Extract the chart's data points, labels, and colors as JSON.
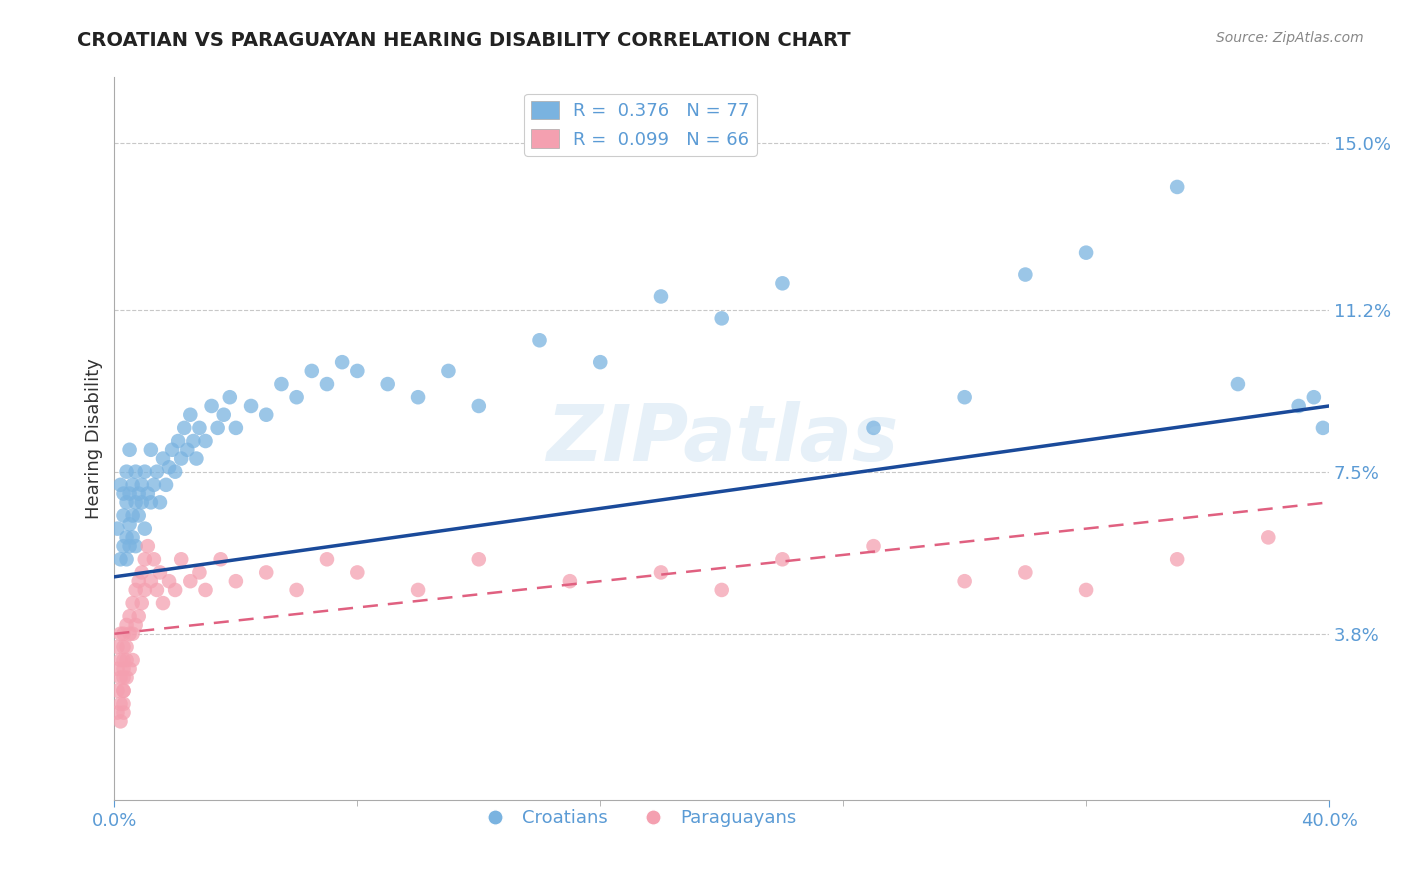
{
  "title": "CROATIAN VS PARAGUAYAN HEARING DISABILITY CORRELATION CHART",
  "source_text": "Source: ZipAtlas.com",
  "ylabel": "Hearing Disability",
  "xlim": [
    0.0,
    0.4
  ],
  "ylim": [
    0.0,
    0.165
  ],
  "ytick_positions": [
    0.038,
    0.075,
    0.112,
    0.15
  ],
  "ytick_labels": [
    "3.8%",
    "7.5%",
    "11.2%",
    "15.0%"
  ],
  "axis_color": "#5b9bd5",
  "grid_color": "#c8c8c8",
  "background_color": "#ffffff",
  "watermark_text": "ZIPatlas",
  "croatian_color": "#7ab3e0",
  "paraguayan_color": "#f4a0b0",
  "croatian_line_color": "#1a4a9a",
  "paraguayan_line_color": "#e06080",
  "croatian_N": 77,
  "paraguayan_N": 66,
  "croatian_R": 0.376,
  "paraguayan_R": 0.099,
  "croatian_x": [
    0.001,
    0.002,
    0.002,
    0.003,
    0.003,
    0.003,
    0.004,
    0.004,
    0.004,
    0.004,
    0.005,
    0.005,
    0.005,
    0.005,
    0.006,
    0.006,
    0.006,
    0.007,
    0.007,
    0.007,
    0.008,
    0.008,
    0.009,
    0.009,
    0.01,
    0.01,
    0.011,
    0.012,
    0.012,
    0.013,
    0.014,
    0.015,
    0.016,
    0.017,
    0.018,
    0.019,
    0.02,
    0.021,
    0.022,
    0.023,
    0.024,
    0.025,
    0.026,
    0.027,
    0.028,
    0.03,
    0.032,
    0.034,
    0.036,
    0.038,
    0.04,
    0.045,
    0.05,
    0.055,
    0.06,
    0.065,
    0.07,
    0.075,
    0.08,
    0.09,
    0.1,
    0.11,
    0.12,
    0.14,
    0.16,
    0.18,
    0.2,
    0.22,
    0.25,
    0.28,
    0.3,
    0.32,
    0.35,
    0.37,
    0.39,
    0.395,
    0.398
  ],
  "croatian_y": [
    0.062,
    0.055,
    0.072,
    0.058,
    0.065,
    0.07,
    0.06,
    0.068,
    0.075,
    0.055,
    0.063,
    0.07,
    0.058,
    0.08,
    0.065,
    0.072,
    0.06,
    0.068,
    0.075,
    0.058,
    0.07,
    0.065,
    0.072,
    0.068,
    0.075,
    0.062,
    0.07,
    0.068,
    0.08,
    0.072,
    0.075,
    0.068,
    0.078,
    0.072,
    0.076,
    0.08,
    0.075,
    0.082,
    0.078,
    0.085,
    0.08,
    0.088,
    0.082,
    0.078,
    0.085,
    0.082,
    0.09,
    0.085,
    0.088,
    0.092,
    0.085,
    0.09,
    0.088,
    0.095,
    0.092,
    0.098,
    0.095,
    0.1,
    0.098,
    0.095,
    0.092,
    0.098,
    0.09,
    0.105,
    0.1,
    0.115,
    0.11,
    0.118,
    0.085,
    0.092,
    0.12,
    0.125,
    0.14,
    0.095,
    0.09,
    0.092,
    0.085
  ],
  "paraguayan_x": [
    0.001,
    0.001,
    0.001,
    0.001,
    0.002,
    0.002,
    0.002,
    0.002,
    0.002,
    0.003,
    0.003,
    0.003,
    0.003,
    0.003,
    0.003,
    0.003,
    0.003,
    0.003,
    0.004,
    0.004,
    0.004,
    0.004,
    0.005,
    0.005,
    0.005,
    0.006,
    0.006,
    0.006,
    0.007,
    0.007,
    0.008,
    0.008,
    0.009,
    0.009,
    0.01,
    0.01,
    0.011,
    0.012,
    0.013,
    0.014,
    0.015,
    0.016,
    0.018,
    0.02,
    0.022,
    0.025,
    0.028,
    0.03,
    0.035,
    0.04,
    0.05,
    0.06,
    0.07,
    0.08,
    0.1,
    0.12,
    0.15,
    0.18,
    0.2,
    0.22,
    0.25,
    0.28,
    0.3,
    0.32,
    0.35,
    0.38
  ],
  "paraguayan_y": [
    0.025,
    0.03,
    0.02,
    0.035,
    0.028,
    0.022,
    0.032,
    0.018,
    0.038,
    0.025,
    0.03,
    0.022,
    0.035,
    0.028,
    0.02,
    0.038,
    0.032,
    0.025,
    0.04,
    0.035,
    0.028,
    0.032,
    0.042,
    0.038,
    0.03,
    0.045,
    0.038,
    0.032,
    0.048,
    0.04,
    0.05,
    0.042,
    0.052,
    0.045,
    0.055,
    0.048,
    0.058,
    0.05,
    0.055,
    0.048,
    0.052,
    0.045,
    0.05,
    0.048,
    0.055,
    0.05,
    0.052,
    0.048,
    0.055,
    0.05,
    0.052,
    0.048,
    0.055,
    0.052,
    0.048,
    0.055,
    0.05,
    0.052,
    0.048,
    0.055,
    0.058,
    0.05,
    0.052,
    0.048,
    0.055,
    0.06
  ]
}
